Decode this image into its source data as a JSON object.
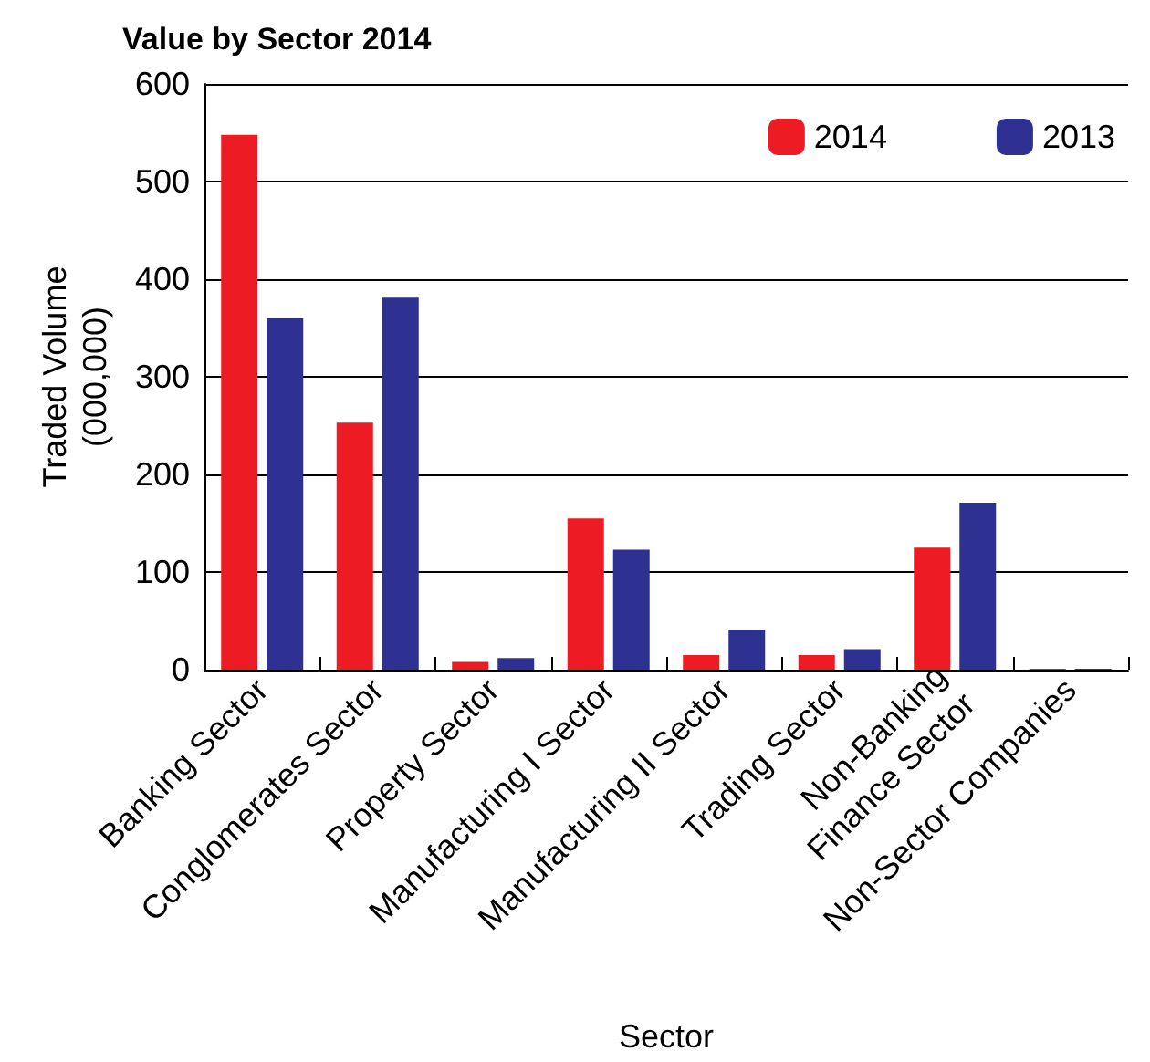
{
  "chart_data": {
    "type": "bar",
    "title": "Value by Sector 2014",
    "xlabel": "Sector",
    "ylabel": "Traded Volume\n(000,000)",
    "categories": [
      "Banking Sector",
      "Conglomerates Sector",
      "Property Sector",
      "Manufacturing I Sector",
      "Manufacturing II Sector",
      "Trading Sector",
      "Non-Banking\nFinance Sector",
      "Non-Sector Companies"
    ],
    "series": [
      {
        "name": "2014",
        "color": "#ed1c24",
        "values": [
          548,
          253,
          8,
          155,
          15,
          15,
          125,
          1
        ]
      },
      {
        "name": "2013",
        "color": "#2e3192",
        "values": [
          360,
          381,
          12,
          123,
          41,
          21,
          171,
          1
        ]
      }
    ],
    "ylim": [
      0,
      600
    ],
    "yticks": [
      0,
      100,
      200,
      300,
      400,
      500,
      600
    ],
    "grid": "y",
    "legend": "top right"
  }
}
